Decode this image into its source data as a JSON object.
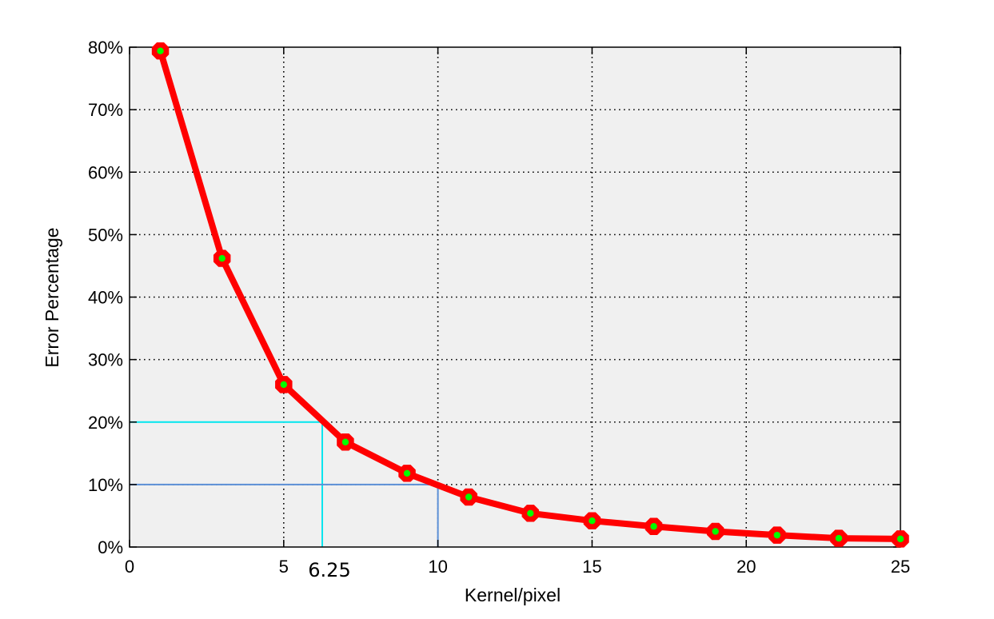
{
  "chart_data": {
    "type": "line",
    "xlabel": "Kernel/pixel",
    "ylabel": "Error Percentage",
    "xlim": [
      0,
      25
    ],
    "ylim": [
      0,
      80
    ],
    "x_ticks": [
      0,
      5,
      10,
      15,
      20,
      25
    ],
    "x_tick_labels": [
      "0",
      "5",
      "10",
      "15",
      "20",
      "25"
    ],
    "y_ticks": [
      0,
      10,
      20,
      30,
      40,
      50,
      60,
      70,
      80
    ],
    "y_tick_labels": [
      "0%",
      "10%",
      "20%",
      "30%",
      "40%",
      "50%",
      "60%",
      "70%",
      "80%"
    ],
    "grid": true,
    "series": [
      {
        "x": [
          1,
          3,
          5,
          7,
          9,
          11,
          13,
          15,
          17,
          19,
          21,
          23,
          25
        ],
        "y": [
          79.4,
          46.2,
          26.0,
          16.8,
          11.8,
          8.0,
          5.4,
          4.2,
          3.3,
          2.5,
          1.9,
          1.4,
          1.3
        ],
        "line_color": "#ff0000",
        "marker_fill": "#00ff00",
        "marker_edge": "#ff0000"
      }
    ],
    "annotations": [
      {
        "label": "6.25",
        "x": 6.25,
        "y": 20,
        "color": "#00e5ee"
      },
      {
        "label": "",
        "x": 10,
        "y": 10,
        "color": "#5b8fd6"
      }
    ],
    "colors": {
      "plot_background": "#f0f0f0",
      "axes": "#000000",
      "grid": "#000000"
    }
  }
}
